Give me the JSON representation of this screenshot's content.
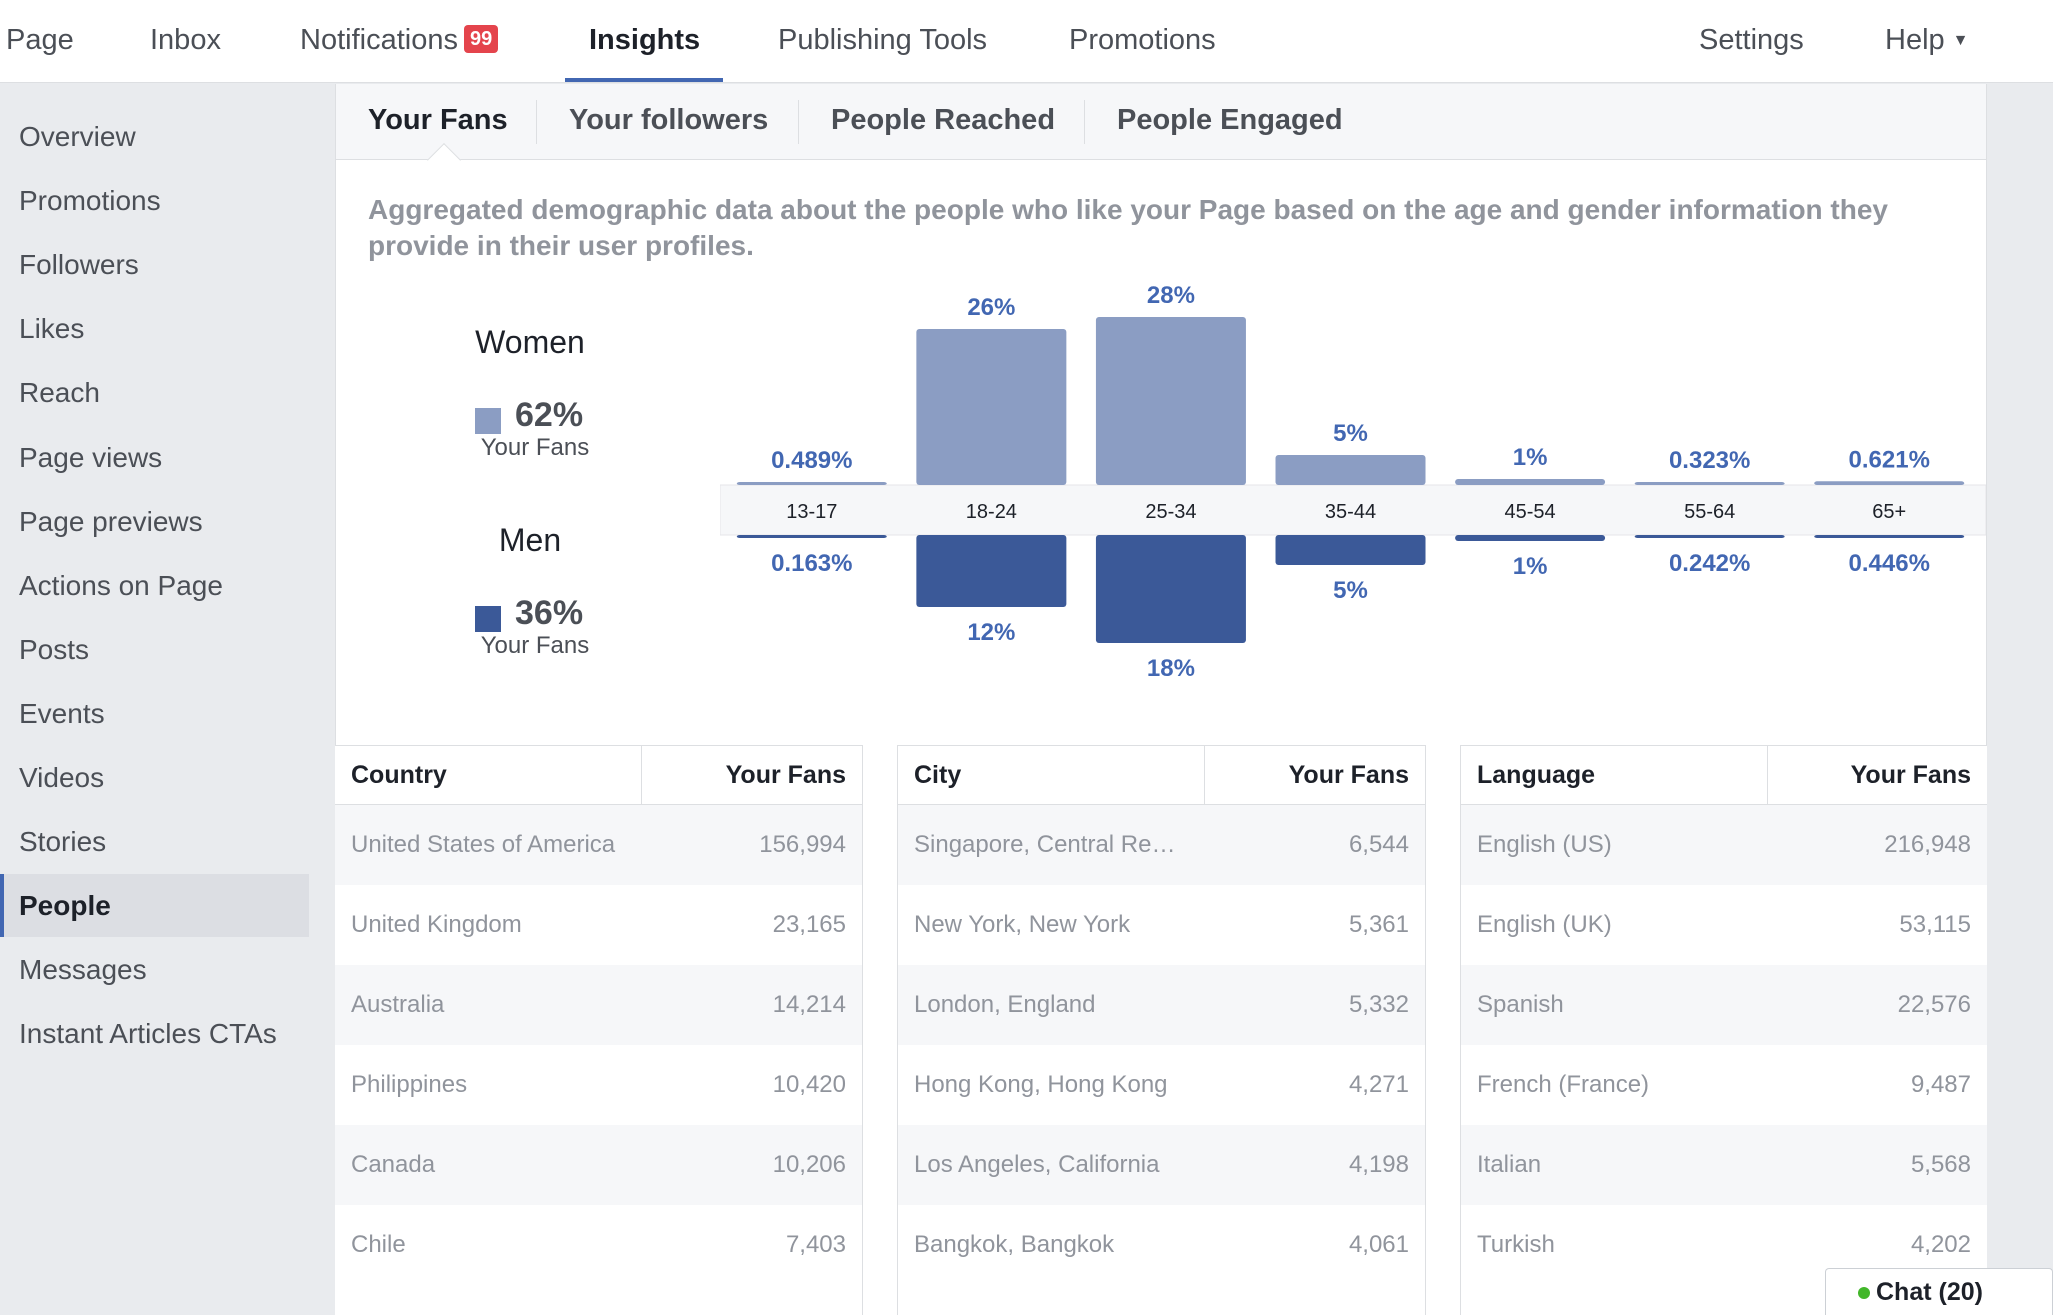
{
  "nav": {
    "items": [
      {
        "label": "Page"
      },
      {
        "label": "Inbox"
      },
      {
        "label": "Notifications",
        "badge": "99"
      },
      {
        "label": "Insights"
      },
      {
        "label": "Publishing Tools"
      },
      {
        "label": "Promotions"
      }
    ],
    "settings": "Settings",
    "help": "Help",
    "active": "Insights"
  },
  "sidebar": {
    "items": [
      {
        "label": "Overview"
      },
      {
        "label": "Promotions"
      },
      {
        "label": "Followers"
      },
      {
        "label": "Likes"
      },
      {
        "label": "Reach"
      },
      {
        "label": "Page views"
      },
      {
        "label": "Page previews"
      },
      {
        "label": "Actions on Page"
      },
      {
        "label": "Posts"
      },
      {
        "label": "Events"
      },
      {
        "label": "Videos"
      },
      {
        "label": "Stories"
      },
      {
        "label": "People"
      },
      {
        "label": "Messages"
      },
      {
        "label": "Instant Articles CTAs"
      }
    ],
    "active": "People"
  },
  "subtabs": {
    "items": [
      {
        "label": "Your Fans"
      },
      {
        "label": "Your followers"
      },
      {
        "label": "People Reached"
      },
      {
        "label": "People Engaged"
      }
    ],
    "active": "Your Fans"
  },
  "description": "Aggregated demographic data about the people who like your Page based on the age and gender information they provide in their user profiles.",
  "legend": {
    "women": {
      "title": "Women",
      "pct": "62%",
      "sub": "Your Fans",
      "color": "#8b9dc3"
    },
    "men": {
      "title": "Men",
      "pct": "36%",
      "sub": "Your Fans",
      "color": "#3b5998"
    }
  },
  "chart_data": {
    "type": "bar",
    "categories": [
      "13-17",
      "18-24",
      "25-34",
      "35-44",
      "45-54",
      "55-64",
      "65+"
    ],
    "series": [
      {
        "name": "Women",
        "values": [
          0.489,
          26,
          28,
          5,
          1,
          0.323,
          0.621
        ],
        "labels": [
          "0.489%",
          "26%",
          "28%",
          "5%",
          "1%",
          "0.323%",
          "0.621%"
        ],
        "color": "#8b9dc3"
      },
      {
        "name": "Men",
        "values": [
          0.163,
          12,
          18,
          5,
          1,
          0.242,
          0.446
        ],
        "labels": [
          "0.163%",
          "12%",
          "18%",
          "5%",
          "1%",
          "0.242%",
          "0.446%"
        ],
        "color": "#3b5998"
      }
    ],
    "label_color": "#4267b2"
  },
  "tables": {
    "country": {
      "headers": [
        "Country",
        "Your Fans"
      ],
      "rows": [
        [
          "United States of America",
          "156,994"
        ],
        [
          "United Kingdom",
          "23,165"
        ],
        [
          "Australia",
          "14,214"
        ],
        [
          "Philippines",
          "10,420"
        ],
        [
          "Canada",
          "10,206"
        ],
        [
          "Chile",
          "7,403"
        ]
      ]
    },
    "city": {
      "headers": [
        "City",
        "Your Fans"
      ],
      "rows": [
        [
          "Singapore, Central Re…",
          "6,544"
        ],
        [
          "New York, New York",
          "5,361"
        ],
        [
          "London, England",
          "5,332"
        ],
        [
          "Hong Kong, Hong Kong",
          "4,271"
        ],
        [
          "Los Angeles, California",
          "4,198"
        ],
        [
          "Bangkok, Bangkok",
          "4,061"
        ]
      ]
    },
    "language": {
      "headers": [
        "Language",
        "Your Fans"
      ],
      "rows": [
        [
          "English (US)",
          "216,948"
        ],
        [
          "English (UK)",
          "53,115"
        ],
        [
          "Spanish",
          "22,576"
        ],
        [
          "French (France)",
          "9,487"
        ],
        [
          "Italian",
          "5,568"
        ],
        [
          "Turkish",
          "4,202"
        ]
      ]
    }
  },
  "chat": {
    "label": "Chat (20)",
    "status_color": "#42b72a"
  }
}
